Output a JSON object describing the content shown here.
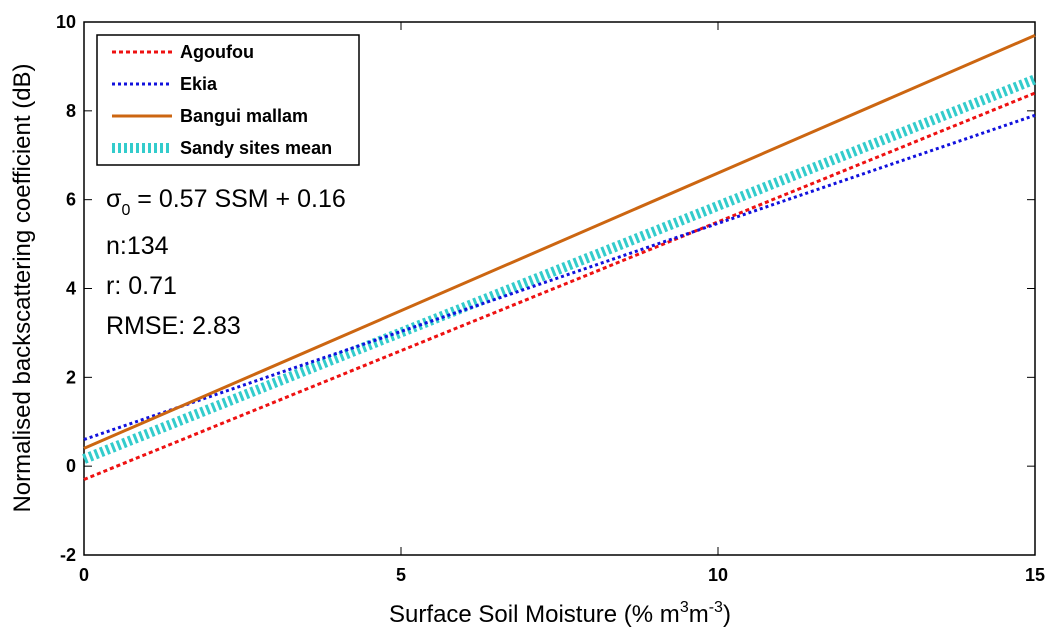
{
  "chart_data": {
    "type": "line",
    "xlabel": [
      "Surface Soil Moisture (% m",
      "3",
      "m",
      "-3",
      ")"
    ],
    "ylabel": "Normalised backscattering coefficient (dB)",
    "x": [
      0,
      15
    ],
    "series": [
      {
        "name": "Agoufou",
        "color": "#ee1111",
        "style": "dashed",
        "values": [
          -0.3,
          8.4
        ]
      },
      {
        "name": "Ekia",
        "color": "#1111dd",
        "style": "dotted",
        "values": [
          0.6,
          7.9
        ]
      },
      {
        "name": "Bangui mallam",
        "color": "#cc6611",
        "style": "solid",
        "values": [
          0.4,
          9.7
        ]
      },
      {
        "name": "Sandy sites mean",
        "color": "#33cccc",
        "style": "thick-dashed",
        "values": [
          0.16,
          8.71
        ]
      }
    ],
    "annotations": [
      [
        "σ",
        "0",
        " = 0.57 SSM + 0.16"
      ],
      [
        "n:134"
      ],
      [
        "r: 0.71"
      ],
      [
        "RMSE: 2.83"
      ]
    ],
    "xlim": [
      0,
      15
    ],
    "xticks": [
      0,
      5,
      10,
      15
    ],
    "ylim": [
      -2,
      10
    ],
    "yticks": [
      -2,
      0,
      2,
      4,
      6,
      8,
      10
    ],
    "legend": "upper left"
  }
}
